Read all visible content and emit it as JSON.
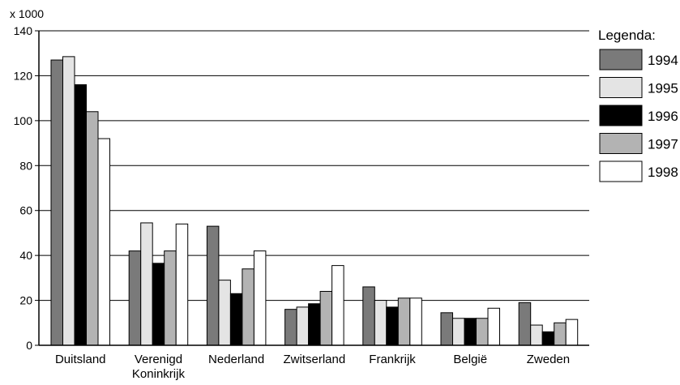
{
  "chart_data": {
    "type": "bar",
    "y_unit_label": "x 1000",
    "legend_title": "Legenda:",
    "legend_placement": "right",
    "categories": [
      [
        "Duitsland"
      ],
      [
        "Verenigd",
        "Koninkrijk"
      ],
      [
        "Nederland"
      ],
      [
        "Zwitserland"
      ],
      [
        "Frankrijk"
      ],
      [
        "België"
      ],
      [
        "Zweden"
      ]
    ],
    "series": [
      {
        "name": "1994",
        "color": "#7a7a7a",
        "values": [
          127,
          42,
          53,
          16,
          26,
          14.5,
          19
        ]
      },
      {
        "name": "1995",
        "color": "#e4e4e4",
        "values": [
          128.5,
          54.5,
          29,
          17,
          20,
          12,
          9
        ]
      },
      {
        "name": "1996",
        "color": "#000000",
        "values": [
          116,
          36.5,
          23,
          18.5,
          17,
          12,
          6
        ]
      },
      {
        "name": "1997",
        "color": "#b3b3b3",
        "values": [
          104,
          42,
          34,
          24,
          21,
          12,
          10
        ]
      },
      {
        "name": "1998",
        "color": "#ffffff",
        "values": [
          92,
          54,
          42,
          35.5,
          21,
          16.5,
          11.5
        ]
      }
    ],
    "ylim": [
      0,
      140
    ],
    "yticks": [
      0,
      20,
      40,
      60,
      80,
      100,
      120,
      140
    ],
    "grid": true
  }
}
